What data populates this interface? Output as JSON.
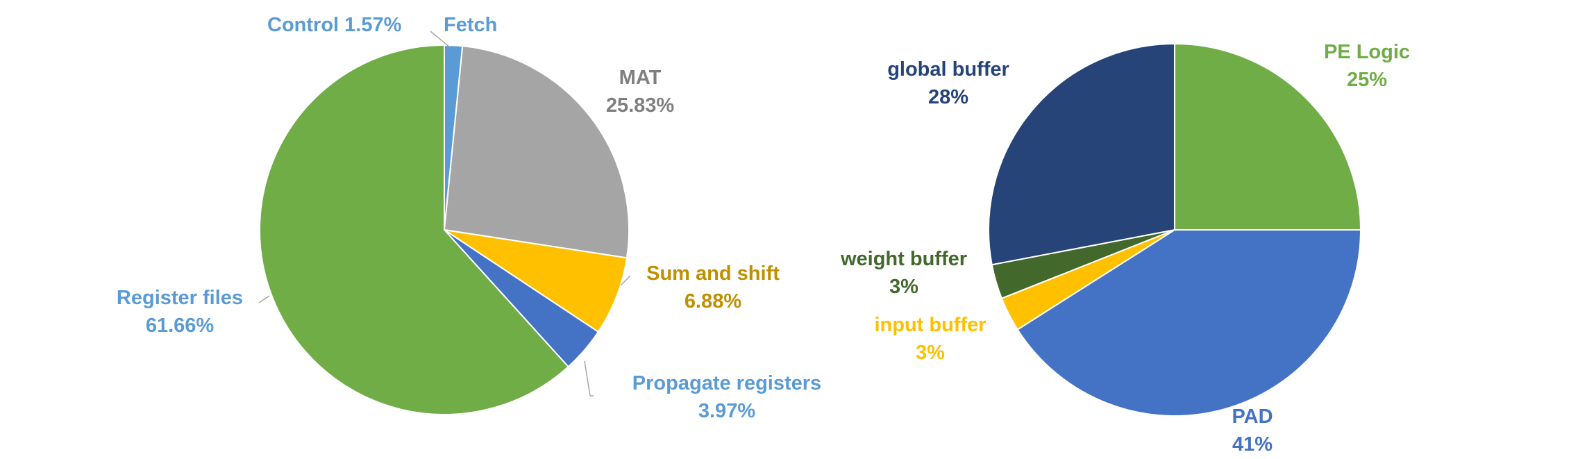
{
  "chart_data": [
    {
      "type": "pie",
      "title": "",
      "slices": [
        {
          "name": "Fetch",
          "value": 1.57,
          "value_label": "",
          "color": "#5B9BD5",
          "label_color": "#5B9BD5"
        },
        {
          "name": "MAT",
          "value": 25.83,
          "value_label": "25.83%",
          "color": "#A5A5A5",
          "label_color": "#7F7F7F"
        },
        {
          "name": "Sum and shift",
          "value": 6.88,
          "value_label": "6.88%",
          "color": "#FFC000",
          "label_color": "#BF9000"
        },
        {
          "name": "Propagate registers",
          "value": 3.97,
          "value_label": "3.97%",
          "color": "#4472C4",
          "label_color": "#5B9BD5"
        },
        {
          "name": "Register files",
          "value": 61.66,
          "value_label": "61.66%",
          "color": "#70AD47",
          "label_color": "#5B9BD5"
        }
      ],
      "extra_labels": [
        {
          "text": "Control 1.57%",
          "color": "#5B9BD5"
        }
      ]
    },
    {
      "type": "pie",
      "title": "",
      "slices": [
        {
          "name": "PE Logic",
          "value": 25,
          "value_label": "25%",
          "color": "#70AD47",
          "label_color": "#70AD47"
        },
        {
          "name": "PAD",
          "value": 41,
          "value_label": "41%",
          "color": "#4472C4",
          "label_color": "#4472C4"
        },
        {
          "name": "input buffer",
          "value": 3,
          "value_label": "3%",
          "color": "#FFC000",
          "label_color": "#FFC000"
        },
        {
          "name": "weight buffer",
          "value": 3,
          "value_label": "3%",
          "color": "#43682B",
          "label_color": "#43682B"
        },
        {
          "name": "global buffer",
          "value": 28,
          "value_label": "28%",
          "color": "#264478",
          "label_color": "#264478"
        }
      ]
    }
  ]
}
